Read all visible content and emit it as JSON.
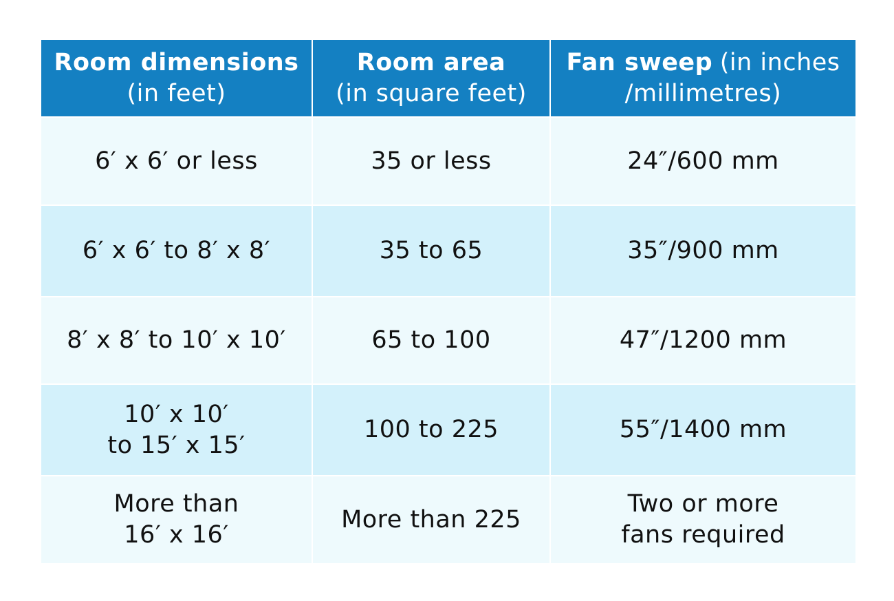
{
  "table": {
    "header": [
      [
        [
          {
            "text": "Room dimensions",
            "bold": true
          }
        ],
        [
          {
            "text": "(in feet)",
            "bold": false
          }
        ]
      ],
      [
        [
          {
            "text": "Room area",
            "bold": true
          }
        ],
        [
          {
            "text": "(in square feet)",
            "bold": false
          }
        ]
      ],
      [
        [
          {
            "text": "Fan sweep",
            "bold": true
          },
          {
            "text": "(in inches",
            "bold": false
          }
        ],
        [
          {
            "text": "/millimetres)",
            "bold": false
          }
        ]
      ]
    ],
    "rows": [
      [
        [
          "6′ x 6′ or less"
        ],
        [
          "35 or less"
        ],
        [
          "24″/600 mm"
        ]
      ],
      [
        [
          "6′ x 6′ to 8′ x 8′"
        ],
        [
          "35 to 65"
        ],
        [
          "35″/900 mm"
        ]
      ],
      [
        [
          "8′ x 8′ to 10′ x 10′"
        ],
        [
          "65 to 100"
        ],
        [
          "47″/1200 mm"
        ]
      ],
      [
        [
          "10′ x 10′",
          "to 15′ x 15′"
        ],
        [
          "100 to 225"
        ],
        [
          "55″/1400 mm"
        ]
      ],
      [
        [
          "More than",
          "16′ x 16′"
        ],
        [
          "More than 225"
        ],
        [
          "Two or more",
          "fans required"
        ]
      ]
    ]
  }
}
